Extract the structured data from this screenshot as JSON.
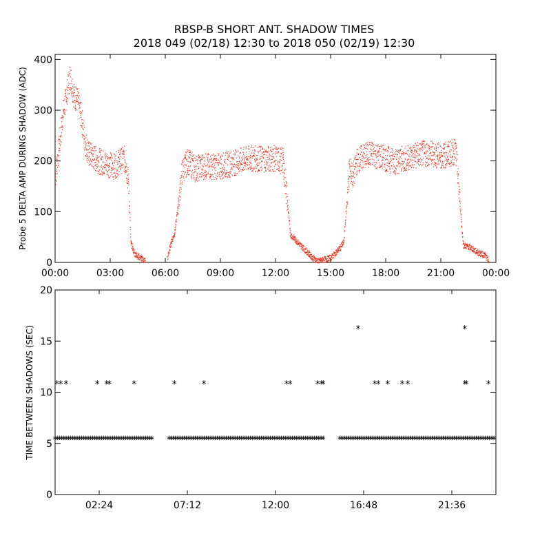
{
  "figure": {
    "title_line1": "RBSP-B SHORT ANT. SHADOW TIMES",
    "title_line2": "2018 049 (02/18) 12:30 to 2018 050 (02/19) 12:30"
  },
  "chart_data": [
    {
      "type": "scatter",
      "ylabel": "Probe 5 DELTA AMP DURING SHADOW (ADC)",
      "ylim": [
        0,
        410
      ],
      "xlim_hours": [
        0,
        24
      ],
      "x_tick_labels": [
        "00:00",
        "03:00",
        "06:00",
        "09:00",
        "12:00",
        "15:00",
        "18:00",
        "21:00",
        "00:00"
      ],
      "y_tick_labels": [
        "0",
        "100",
        "200",
        "300",
        "400"
      ],
      "marker_color": "#e8321e",
      "series": [
        {
          "points": [
            [
              0.0,
              170
            ],
            [
              0.2,
              230
            ],
            [
              0.4,
              290
            ],
            [
              0.6,
              330
            ],
            [
              0.8,
              370
            ],
            [
              1.0,
              330
            ],
            [
              1.2,
              320
            ],
            [
              1.4,
              290
            ],
            [
              1.6,
              240
            ],
            [
              1.8,
              215
            ],
            [
              2.0,
              210
            ],
            [
              2.4,
              200
            ],
            [
              2.8,
              195
            ],
            [
              3.2,
              190
            ],
            [
              3.5,
              200
            ],
            [
              3.8,
              205
            ],
            [
              4.0,
              150
            ],
            [
              4.1,
              40
            ],
            [
              4.3,
              18
            ],
            [
              4.6,
              10
            ],
            [
              4.9,
              4
            ],
            [
              6.1,
              8
            ],
            [
              6.3,
              40
            ],
            [
              6.5,
              60
            ],
            [
              6.7,
              120
            ],
            [
              6.9,
              180
            ],
            [
              7.2,
              200
            ],
            [
              7.6,
              185
            ],
            [
              8.0,
              190
            ],
            [
              8.5,
              190
            ],
            [
              9.0,
              190
            ],
            [
              9.5,
              195
            ],
            [
              10.0,
              200
            ],
            [
              10.5,
              205
            ],
            [
              11.0,
              205
            ],
            [
              11.5,
              205
            ],
            [
              12.0,
              205
            ],
            [
              12.4,
              200
            ],
            [
              12.6,
              130
            ],
            [
              12.8,
              55
            ],
            [
              13.2,
              40
            ],
            [
              13.6,
              25
            ],
            [
              14.0,
              10
            ],
            [
              14.3,
              3
            ],
            [
              15.0,
              10
            ],
            [
              15.4,
              25
            ],
            [
              15.7,
              40
            ],
            [
              16.0,
              185
            ],
            [
              16.2,
              170
            ],
            [
              16.4,
              200
            ],
            [
              16.8,
              210
            ],
            [
              17.2,
              215
            ],
            [
              17.6,
              210
            ],
            [
              18.0,
              205
            ],
            [
              18.5,
              200
            ],
            [
              19.0,
              205
            ],
            [
              19.5,
              210
            ],
            [
              20.0,
              215
            ],
            [
              20.5,
              215
            ],
            [
              21.0,
              210
            ],
            [
              21.5,
              215
            ],
            [
              21.8,
              220
            ],
            [
              22.0,
              130
            ],
            [
              22.2,
              35
            ],
            [
              22.6,
              30
            ],
            [
              23.0,
              20
            ],
            [
              23.4,
              15
            ],
            [
              23.6,
              2
            ]
          ]
        }
      ]
    },
    {
      "type": "scatter",
      "ylabel": "TIME BETWEEN SHADOWS (SEC)",
      "ylim": [
        0,
        20
      ],
      "xlim_hours": [
        0,
        24
      ],
      "x_tick_labels": [
        "02:24",
        "07:12",
        "12:00",
        "16:48",
        "21:36"
      ],
      "y_tick_labels": [
        "0",
        "5",
        "10",
        "15",
        "20"
      ],
      "marker_color": "#000000",
      "marker_symbol": "*",
      "baseline_value": 5.4,
      "baseline_segments_hours": [
        [
          0.0,
          5.3
        ],
        [
          6.2,
          14.7
        ],
        [
          15.5,
          24.0
        ]
      ],
      "series": [
        {
          "points": [
            [
              0.1,
              10.8
            ],
            [
              0.3,
              10.8
            ],
            [
              0.6,
              10.8
            ],
            [
              2.3,
              10.8
            ],
            [
              2.8,
              10.8
            ],
            [
              2.95,
              10.8
            ],
            [
              4.3,
              10.8
            ],
            [
              6.5,
              10.8
            ],
            [
              8.1,
              10.8
            ],
            [
              12.6,
              10.8
            ],
            [
              12.8,
              10.8
            ],
            [
              14.3,
              10.8
            ],
            [
              14.5,
              10.8
            ],
            [
              14.6,
              10.8
            ],
            [
              16.5,
              16.2
            ],
            [
              17.4,
              10.8
            ],
            [
              17.6,
              10.8
            ],
            [
              18.1,
              10.8
            ],
            [
              18.9,
              10.8
            ],
            [
              19.2,
              10.8
            ],
            [
              22.3,
              16.2
            ],
            [
              22.3,
              10.8
            ],
            [
              22.4,
              10.8
            ],
            [
              23.6,
              10.8
            ]
          ]
        }
      ]
    }
  ]
}
